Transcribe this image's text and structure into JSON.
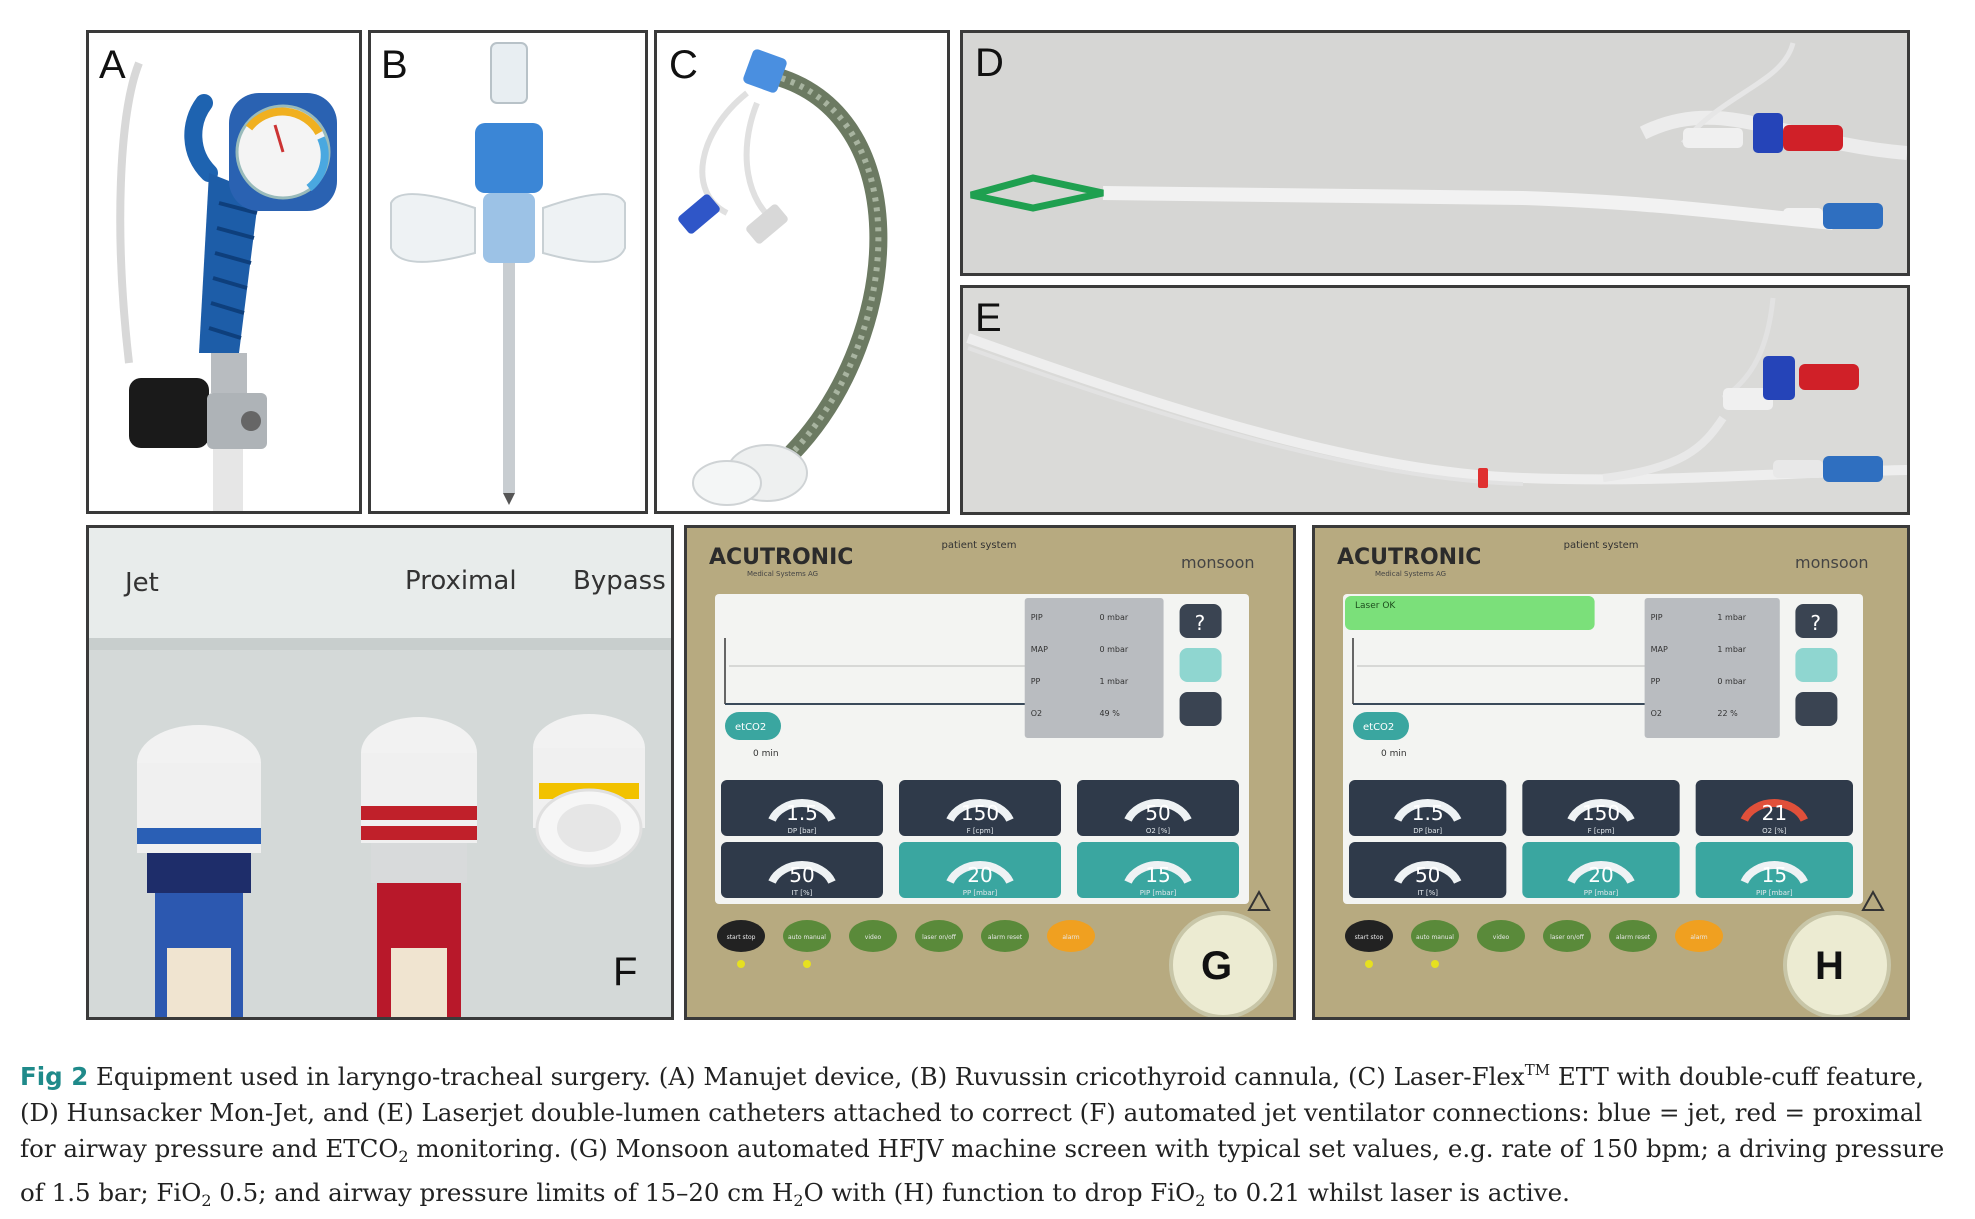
{
  "panels": {
    "A": {
      "label": "A"
    },
    "B": {
      "label": "B"
    },
    "C": {
      "label": "C"
    },
    "D": {
      "label": "D"
    },
    "E": {
      "label": "E"
    },
    "F": {
      "label": "F",
      "connector_labels": [
        "Jet",
        "Proximal",
        "Bypass"
      ]
    },
    "G": {
      "label": "G"
    },
    "H": {
      "label": "H"
    }
  },
  "monitor": {
    "brand": "ACUTRONIC",
    "sub_brand": "Medical Systems AG",
    "model": "monsoon",
    "patient_system": "patient system",
    "laser_banner": "Laser OK",
    "etco2_button": "etCO2",
    "time_axis": "0 min",
    "help_button": "?",
    "readouts": {
      "G": [
        {
          "name": "PIP",
          "value": "0 mbar"
        },
        {
          "name": "MAP",
          "value": "0 mbar"
        },
        {
          "name": "PP",
          "value": "1 mbar"
        },
        {
          "name": "O2",
          "value": "49 %"
        }
      ],
      "H": [
        {
          "name": "PIP",
          "value": "1 mbar"
        },
        {
          "name": "MAP",
          "value": "1 mbar"
        },
        {
          "name": "PP",
          "value": "0 mbar"
        },
        {
          "name": "O2",
          "value": "22 %"
        }
      ]
    },
    "dials": {
      "G": [
        {
          "value": "1.5",
          "unit": "DP [bar]",
          "style": "dark"
        },
        {
          "value": "150",
          "unit": "F [cpm]",
          "style": "dark"
        },
        {
          "value": "50",
          "unit": "O2 [%]",
          "style": "dark"
        },
        {
          "value": "50",
          "unit": "IT [%]",
          "style": "dark"
        },
        {
          "value": "20",
          "unit": "PP [mbar]",
          "style": "teal"
        },
        {
          "value": "15",
          "unit": "PIP [mbar]",
          "style": "teal"
        }
      ],
      "H": [
        {
          "value": "1.5",
          "unit": "DP [bar]",
          "style": "dark"
        },
        {
          "value": "150",
          "unit": "F [cpm]",
          "style": "dark"
        },
        {
          "value": "21",
          "unit": "O2 [%]",
          "style": "red"
        },
        {
          "value": "50",
          "unit": "IT [%]",
          "style": "dark"
        },
        {
          "value": "20",
          "unit": "PP [mbar]",
          "style": "teal"
        },
        {
          "value": "15",
          "unit": "PIP [mbar]",
          "style": "teal"
        }
      ]
    },
    "keys": [
      "start stop",
      "auto manual",
      "video",
      "laser on/off",
      "alarm reset",
      "alarm"
    ]
  },
  "caption": {
    "fig_number": "Fig 2",
    "segments": [
      "Equipment used in laryngo-tracheal surgery. (A) Manujet device, (B) Ruvussin cricothyroid cannula, (C) Laser-Flex",
      "TM",
      " ETT with double-cuff feature, (D) Hunsacker Mon-Jet, and (E) Laserjet double-lumen catheters attached to correct (F) automated jet ventilator connections: blue = jet, red = proximal for airway pressure and ETCO",
      "2",
      " monitoring. (G) Monsoon automated HFJV machine screen with typical set values, e.g. rate of 150 bpm; a driving pressure of 1.5 bar; FiO",
      "2",
      " 0.5; and airway pressure limits of 15–20 cm H",
      "2",
      "O with (H) function to drop FiO",
      "2",
      " to 0.21 whilst laser is active."
    ]
  },
  "colors": {
    "panel_border": "#3a3a3a",
    "caption_fig": "#1f8a8a",
    "jet_blue": "#2a5fb5",
    "proximal_red": "#c0202a",
    "bypass_yellow": "#f2c200",
    "screen_teal": "#3aa6a0",
    "screen_dark": "#2f3a4a",
    "laser_green": "#7be07a",
    "dial_red": "#e0503a"
  }
}
